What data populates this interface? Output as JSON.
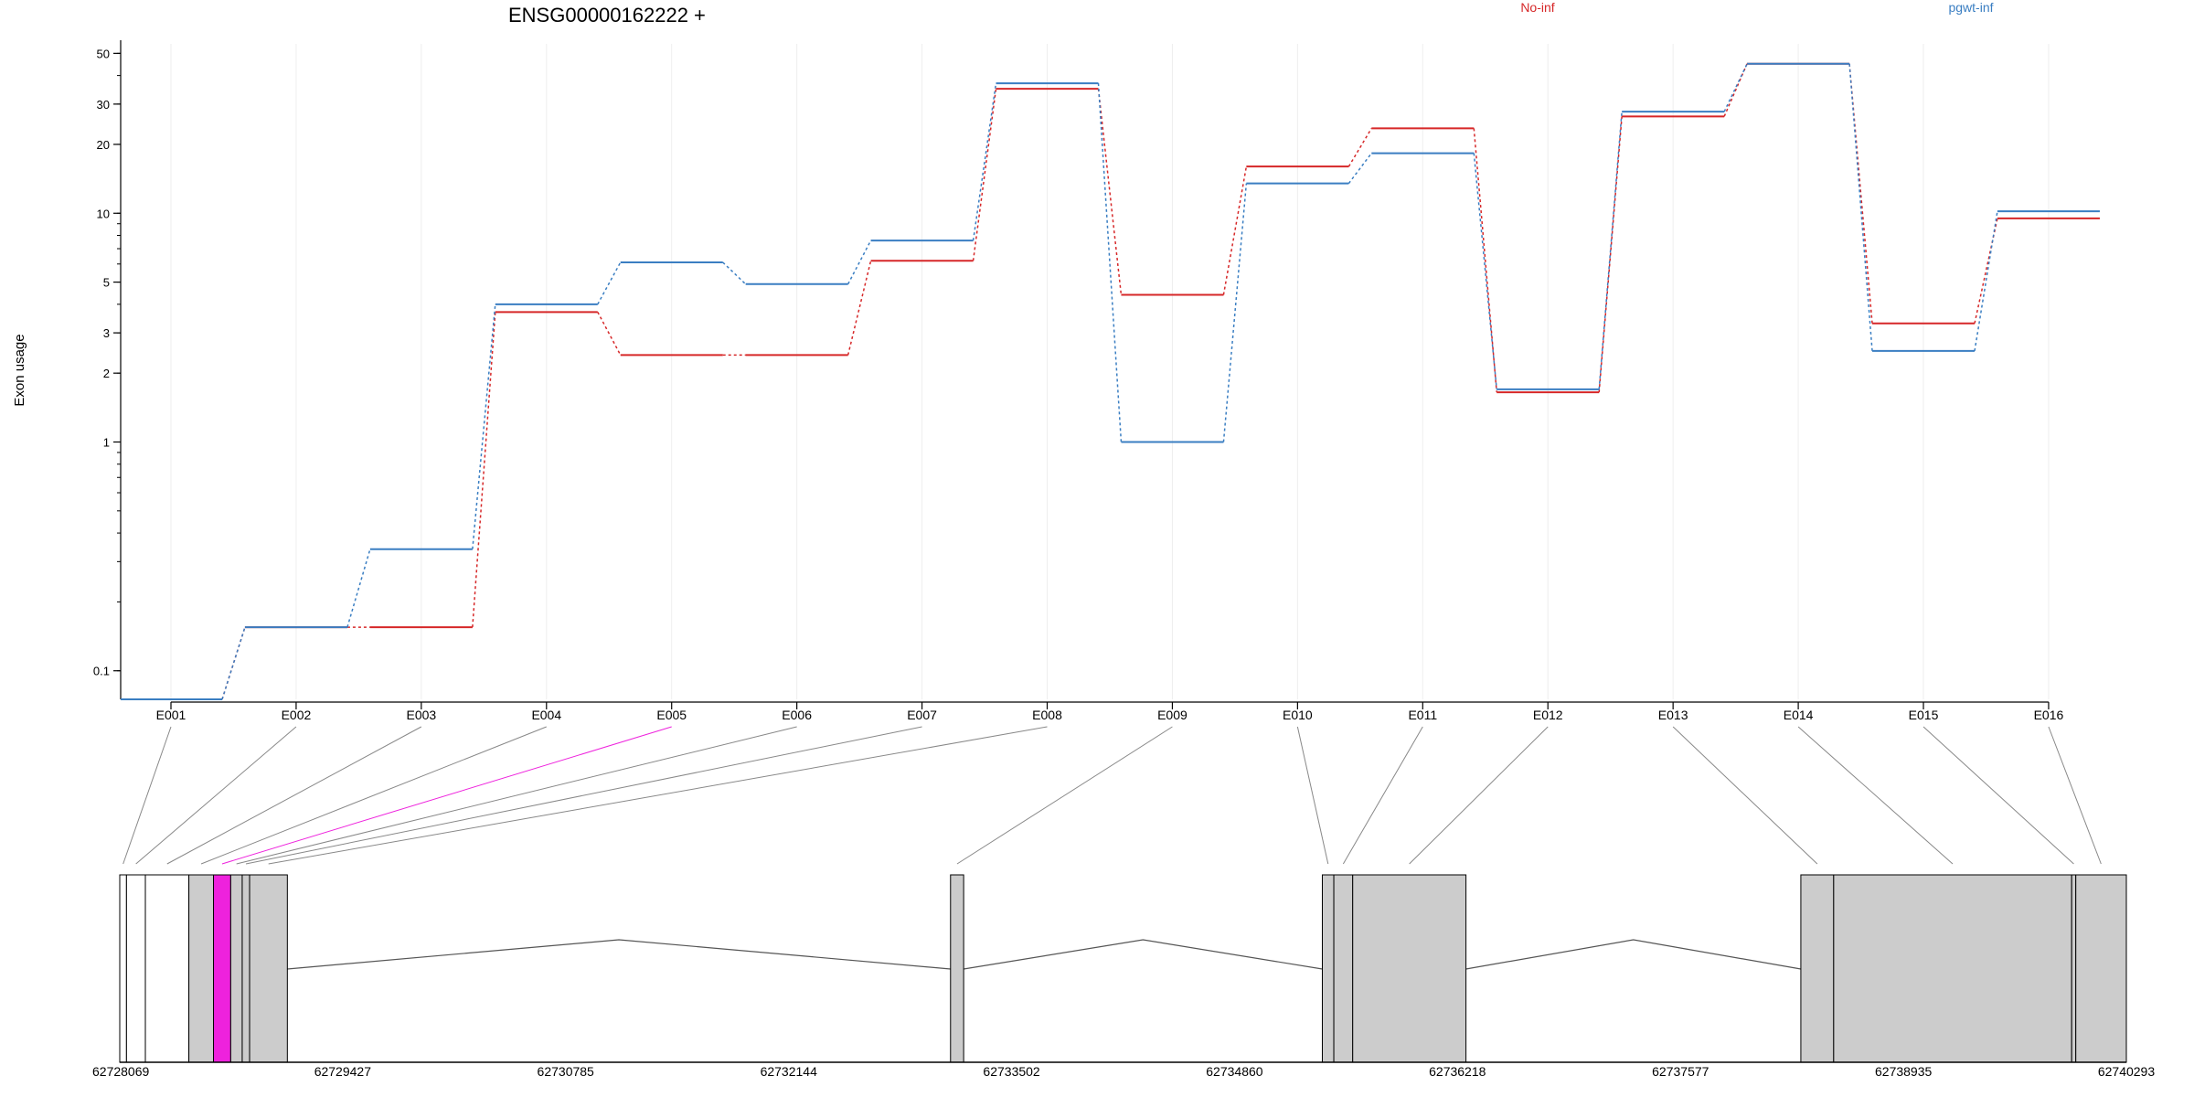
{
  "title": "ENSG00000162222 +",
  "chart_data": {
    "type": "line",
    "ylabel": "Exon usage",
    "y_scale": "log",
    "ylim": [
      0.075,
      55
    ],
    "y_ticks": [
      {
        "value": 0.1,
        "label": "0.1"
      },
      {
        "value": 1,
        "label": "1"
      },
      {
        "value": 2,
        "label": "2"
      },
      {
        "value": 3,
        "label": "3"
      },
      {
        "value": 5,
        "label": "5"
      },
      {
        "value": 10,
        "label": "10"
      },
      {
        "value": 20,
        "label": "20"
      },
      {
        "value": 30,
        "label": "30"
      },
      {
        "value": 50,
        "label": "50"
      }
    ],
    "categories": [
      "E001",
      "E002",
      "E003",
      "E004",
      "E005",
      "E006",
      "E007",
      "E008",
      "E009",
      "E010",
      "E011",
      "E012",
      "E013",
      "E014",
      "E015",
      "E016"
    ],
    "legend_placement": "top",
    "series": [
      {
        "name": "No-inf",
        "color": "#d62728",
        "values": [
          0.075,
          0.155,
          0.155,
          3.7,
          2.4,
          2.4,
          6.2,
          35,
          4.4,
          16,
          23.5,
          1.65,
          26.5,
          45,
          3.3,
          9.5
        ]
      },
      {
        "name": "pgwt-inf",
        "color": "#3a7ec2",
        "values": [
          0.075,
          0.155,
          0.34,
          4.0,
          6.1,
          4.9,
          7.6,
          37,
          1.0,
          13.5,
          18.3,
          1.7,
          27.8,
          45,
          2.5,
          10.2
        ]
      }
    ],
    "highlight_exon": "E005",
    "highlight_color": "#ee22dd",
    "gene_model": {
      "coord_start": 62728069,
      "coord_end": 62740293,
      "coord_ticks": [
        "62728069",
        "62729427",
        "62730785",
        "62732144",
        "62733502",
        "62734860",
        "62736218",
        "62737577",
        "62738935",
        "62740293"
      ],
      "exons": [
        {
          "id": "E001",
          "start": 62728069,
          "end": 62728110,
          "fill": "#ffffff"
        },
        {
          "id": "E002",
          "start": 62728110,
          "end": 62728225,
          "fill": "#ffffff"
        },
        {
          "id": "E003",
          "start": 62728225,
          "end": 62728490,
          "fill": "#ffffff"
        },
        {
          "id": "E004",
          "start": 62728490,
          "end": 62728640,
          "fill": "#cccccc"
        },
        {
          "id": "E005",
          "start": 62728640,
          "end": 62728745,
          "fill": "#ee22dd"
        },
        {
          "id": "E006",
          "start": 62728745,
          "end": 62728815,
          "fill": "#cccccc"
        },
        {
          "id": "E007",
          "start": 62728815,
          "end": 62728860,
          "fill": "#cccccc"
        },
        {
          "id": "E008",
          "start": 62728860,
          "end": 62729090,
          "fill": "#cccccc"
        },
        {
          "id": "E009",
          "start": 62733130,
          "end": 62733210,
          "fill": "#cccccc"
        },
        {
          "id": "E010",
          "start": 62735395,
          "end": 62735465,
          "fill": "#cccccc"
        },
        {
          "id": "E011",
          "start": 62735465,
          "end": 62735580,
          "fill": "#cccccc"
        },
        {
          "id": "E012",
          "start": 62735580,
          "end": 62736270,
          "fill": "#cccccc"
        },
        {
          "id": "E013",
          "start": 62738310,
          "end": 62738510,
          "fill": "#cccccc"
        },
        {
          "id": "E014",
          "start": 62738510,
          "end": 62739960,
          "fill": "#cccccc"
        },
        {
          "id": "E015",
          "start": 62739960,
          "end": 62739985,
          "fill": "#cccccc"
        },
        {
          "id": "E016",
          "start": 62739985,
          "end": 62740293,
          "fill": "#cccccc"
        }
      ],
      "introns": [
        {
          "start": 62729090,
          "end": 62733130
        },
        {
          "start": 62733210,
          "end": 62735395
        },
        {
          "start": 62736270,
          "end": 62738310
        }
      ]
    }
  }
}
